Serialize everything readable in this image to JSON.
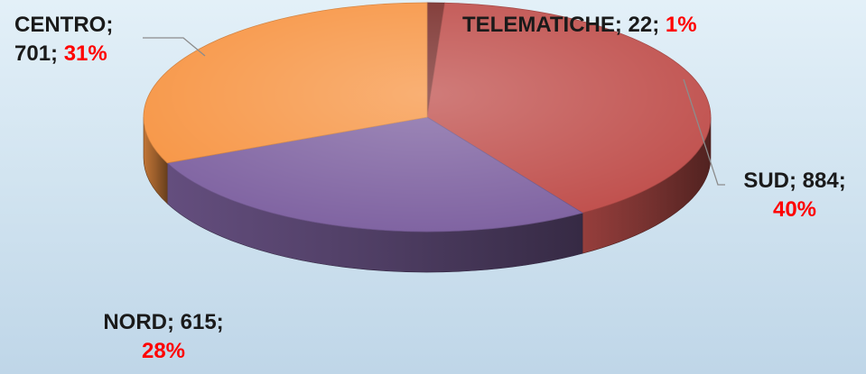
{
  "chart_data": {
    "type": "pie",
    "style": "3d",
    "slices": [
      {
        "name": "TELEMATICHE",
        "value": 22,
        "percent": "1%",
        "color": "#7a2f2c"
      },
      {
        "name": "SUD",
        "value": 884,
        "percent": "40%",
        "color": "#c0504d"
      },
      {
        "name": "NORD",
        "value": 615,
        "percent": "28%",
        "color": "#8064a2"
      },
      {
        "name": "CENTRO",
        "value": 701,
        "percent": "31%",
        "color": "#f79646"
      }
    ],
    "labels": {
      "telematiche": {
        "line1": "TELEMATICHE; 22; ",
        "pct": "1%"
      },
      "sud": {
        "line1": "SUD; 884;",
        "pct": "40%"
      },
      "nord": {
        "line1": "NORD; 615;",
        "pct": "28%"
      },
      "centro": {
        "line1": "CENTRO;",
        "line2": "701; ",
        "pct": "31%"
      }
    }
  }
}
